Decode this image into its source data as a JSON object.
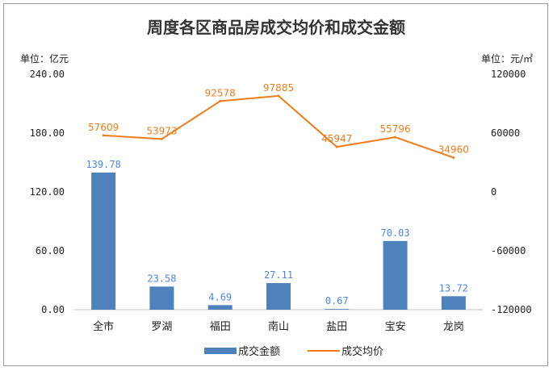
{
  "chart_data": {
    "type": "bar+line",
    "title": "周度各区商品房成交均价和成交金额",
    "left_unit": "单位：亿元",
    "right_unit": "单位：元/㎡",
    "categories": [
      "全市",
      "罗湖",
      "福田",
      "南山",
      "盐田",
      "宝安",
      "龙岗"
    ],
    "series": [
      {
        "name": "成交金额",
        "type": "bar",
        "axis": "left",
        "color": "#4f81bd",
        "label_color": "#4a86e8",
        "values": [
          139.78,
          23.58,
          4.69,
          27.11,
          0.67,
          70.03,
          13.72
        ],
        "labels": [
          "139.78",
          "23.58",
          "4.69",
          "27.11",
          "0.67",
          "70.03",
          "13.72"
        ]
      },
      {
        "name": "成交均价",
        "type": "line",
        "axis": "right",
        "color": "#f07d1a",
        "values": [
          57609,
          53973,
          92578,
          97885,
          45947,
          55796,
          34960
        ],
        "labels": [
          "57609",
          "53973",
          "92578",
          "97885",
          "45947",
          "55796",
          "34960"
        ]
      }
    ],
    "left_axis": {
      "range": [
        0,
        240
      ],
      "ticks": [
        "0.00",
        "60.00",
        "120.00",
        "180.00",
        "240.00"
      ],
      "tick_values": [
        0,
        60,
        120,
        180,
        240
      ]
    },
    "right_axis": {
      "range": [
        -120000,
        120000
      ],
      "ticks": [
        "-120000",
        "-60000",
        "0",
        "60000",
        "120000"
      ],
      "tick_values": [
        -120000,
        -60000,
        0,
        60000,
        120000
      ]
    },
    "grid": false,
    "legend_position": "bottom"
  }
}
